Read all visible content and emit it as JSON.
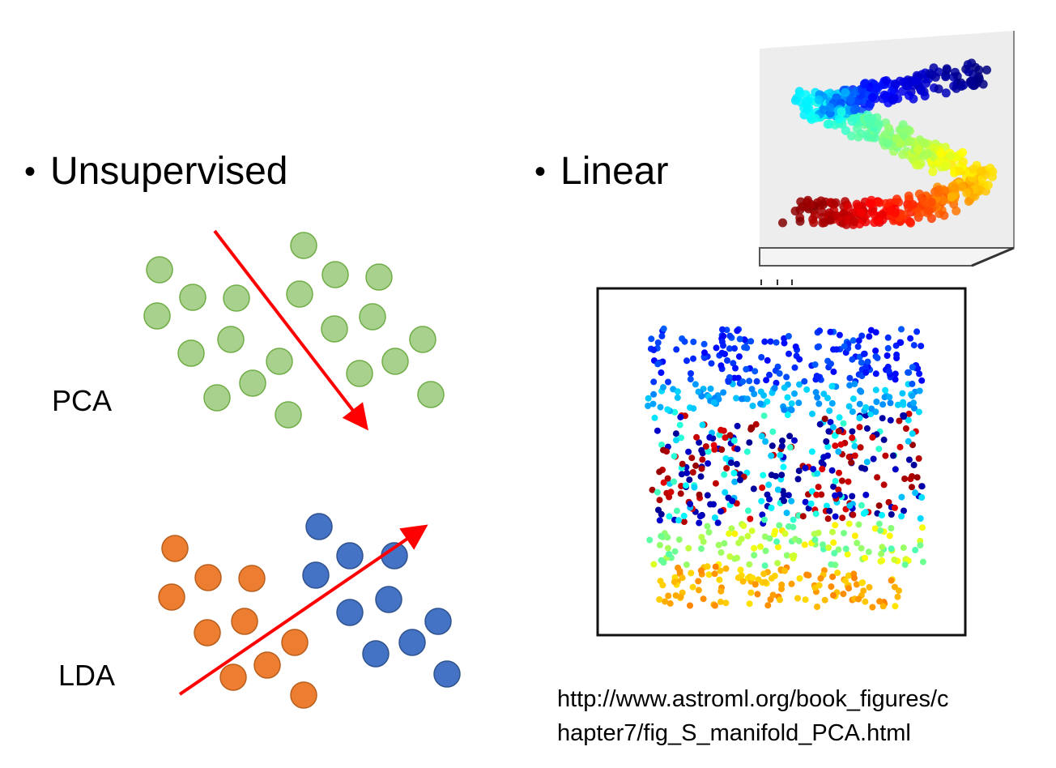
{
  "bullets": {
    "unsupervised": "Unsupervised",
    "linear": "Linear"
  },
  "labels": {
    "pca": "PCA",
    "lda": "LDA"
  },
  "source": {
    "url_line1": "http://www.astroml.org/book_figures/c",
    "url_line2": "hapter7/fig_S_manifold_PCA.html"
  },
  "colors": {
    "pca_points": "#a9d18e",
    "pca_stroke": "#70ad47",
    "lda_class_a": "#ed7d31",
    "lda_class_b": "#4472c4",
    "arrow": "#ff0000"
  },
  "icons": {
    "s_curve_3d": "s-curve-3d-scatter",
    "pca_projection": "pca-2d-scatter"
  }
}
